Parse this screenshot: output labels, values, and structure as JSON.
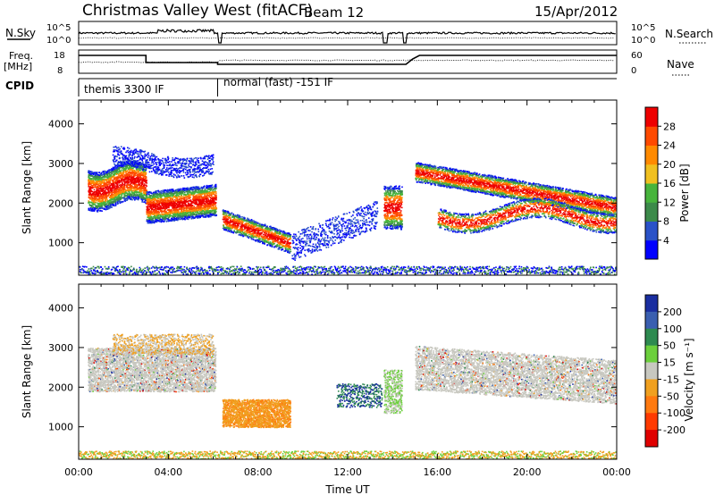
{
  "header": {
    "title": "Christmas Valley West (fitACF)",
    "beam": "Beam 12",
    "date": "15/Apr/2012"
  },
  "top_panels": {
    "nsky_label": "N.Sky",
    "nsky_ticks": [
      "10^5",
      "10^0"
    ],
    "nsearch_label": "N.Search",
    "nsearch_ticks": [
      "10^5",
      "10^0"
    ],
    "freq_label": [
      "Freq.",
      "[MHz]"
    ],
    "freq_ticks": [
      "18",
      "8"
    ],
    "nave_label": "Nave",
    "nave_ticks": [
      "60",
      "0"
    ],
    "cpid_label": "CPID",
    "cpid_segments": [
      {
        "label": "themis 3300 IF",
        "start_h": 0,
        "end_h": 6.2
      },
      {
        "label": "normal (fast) -151 IF",
        "start_h": 6.2,
        "end_h": 24
      }
    ]
  },
  "chart_data": [
    {
      "type": "heatmap",
      "name": "power",
      "ylabel": "Slant Range [km]",
      "xlabel": "",
      "x_range_hours": [
        0,
        24
      ],
      "ylim": [
        180,
        4600
      ],
      "y_ticks": [
        1000,
        2000,
        3000,
        4000
      ],
      "colorbar": {
        "label": "Power [dB]",
        "ticks": [
          4,
          8,
          12,
          16,
          20,
          24,
          28
        ],
        "colors": [
          "#0000ff",
          "#2a52c8",
          "#3c8a4a",
          "#47b43c",
          "#f0c020",
          "#ff8a00",
          "#ff4a00",
          "#ee0000"
        ]
      }
    },
    {
      "type": "heatmap",
      "name": "velocity",
      "ylabel": "Slant Range [km]",
      "xlabel": "Time UT",
      "x_range_hours": [
        0,
        24
      ],
      "x_ticks": [
        "00:00",
        "04:00",
        "08:00",
        "12:00",
        "16:00",
        "20:00",
        "00:00"
      ],
      "ylim": [
        180,
        4600
      ],
      "y_ticks": [
        1000,
        2000,
        3000,
        4000
      ],
      "colorbar": {
        "label": "Velocity [m s⁻¹]",
        "ticks": [
          200,
          100,
          50,
          15,
          -15,
          -50,
          -100,
          -200
        ],
        "colors": [
          "#1a2ea0",
          "#3a5fb0",
          "#2e8a50",
          "#6ccf3c",
          "#c8c8c0",
          "#f0a020",
          "#ff7a10",
          "#ff3a00",
          "#e00000"
        ]
      }
    }
  ]
}
